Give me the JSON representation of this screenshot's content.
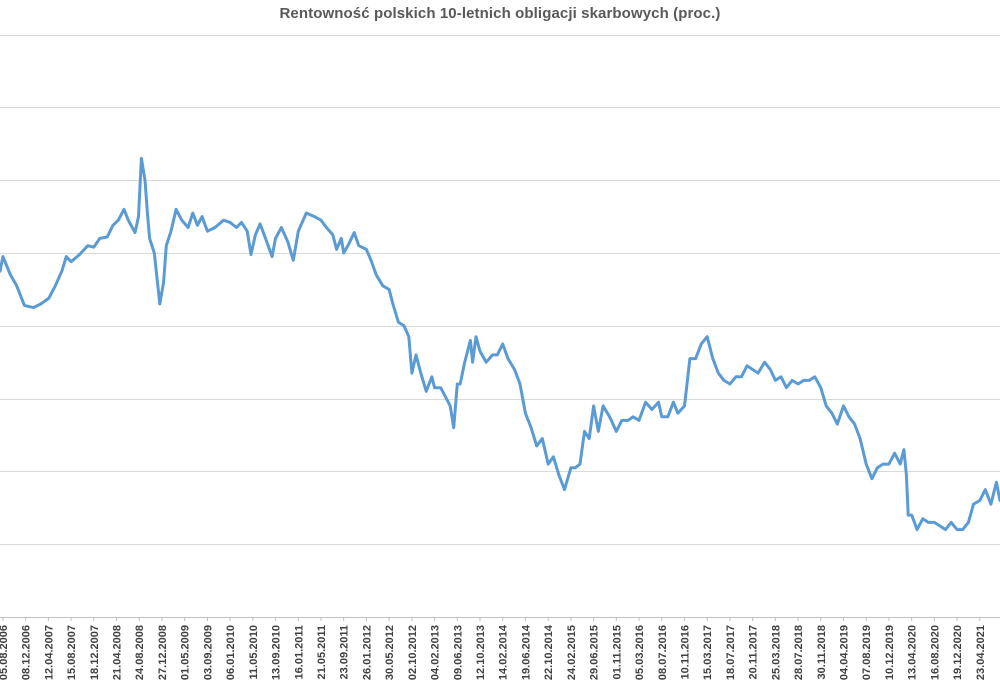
{
  "chart_data": {
    "type": "line",
    "title": "Rentowność polskich 10-letnich obligacji skarbowych (proc.)",
    "xlabel": "",
    "ylabel": "",
    "ylim": [
      0,
      8
    ],
    "y_ticks": [
      1,
      2,
      3,
      4,
      5,
      6,
      7,
      8
    ],
    "y_tick_labels_visible": false,
    "grid": "horizontal",
    "legend": "none",
    "line_color": "#5b9bd5",
    "x_range": [
      "2006-07-20",
      "2021-08-12"
    ],
    "x_tick_labels": [
      "05.08.2006",
      "08.12.2006",
      "12.04.2007",
      "15.08.2007",
      "18.12.2007",
      "21.04.2008",
      "24.08.2008",
      "27.12.2008",
      "01.05.2009",
      "03.09.2009",
      "06.01.2010",
      "11.05.2010",
      "13.09.2010",
      "16.01.2011",
      "21.05.2011",
      "23.09.2011",
      "26.01.2012",
      "30.05.2012",
      "02.10.2012",
      "04.02.2013",
      "09.06.2013",
      "12.10.2013",
      "14.02.2014",
      "19.06.2014",
      "22.10.2014",
      "24.02.2015",
      "29.06.2015",
      "01.11.2015",
      "05.03.2016",
      "08.07.2016",
      "10.11.2016",
      "15.03.2017",
      "18.07.2017",
      "20.11.2017",
      "25.03.2018",
      "28.07.2018",
      "30.11.2018",
      "04.04.2019",
      "07.08.2019",
      "10.12.2019",
      "13.04.2020",
      "16.08.2020",
      "19.12.2020",
      "23.04.2021"
    ],
    "series": [
      {
        "name": "",
        "x": [
          "2006-07-20",
          "2006-08-05",
          "2006-09-15",
          "2006-10-20",
          "2006-12-01",
          "2007-01-20",
          "2007-03-01",
          "2007-04-15",
          "2007-05-20",
          "2007-06-25",
          "2007-07-20",
          "2007-08-15",
          "2007-10-01",
          "2007-11-15",
          "2007-12-18",
          "2008-01-20",
          "2008-03-01",
          "2008-04-01",
          "2008-05-01",
          "2008-06-01",
          "2008-06-25",
          "2008-08-01",
          "2008-08-20",
          "2008-09-05",
          "2008-09-25",
          "2008-10-08",
          "2008-10-20",
          "2008-11-15",
          "2008-12-15",
          "2009-01-05",
          "2009-01-20",
          "2009-02-15",
          "2009-03-15",
          "2009-04-15",
          "2009-05-20",
          "2009-06-15",
          "2009-07-10",
          "2009-08-05",
          "2009-09-03",
          "2009-10-15",
          "2009-12-01",
          "2010-01-06",
          "2010-02-10",
          "2010-03-10",
          "2010-04-10",
          "2010-05-01",
          "2010-05-25",
          "2010-06-20",
          "2010-07-20",
          "2010-08-25",
          "2010-09-13",
          "2010-10-15",
          "2010-11-20",
          "2010-12-20",
          "2011-01-16",
          "2011-03-01",
          "2011-04-15",
          "2011-05-21",
          "2011-06-20",
          "2011-07-25",
          "2011-08-15",
          "2011-09-10",
          "2011-09-23",
          "2011-10-20",
          "2011-11-20",
          "2011-12-15",
          "2012-01-26",
          "2012-02-20",
          "2012-03-20",
          "2012-04-25",
          "2012-05-30",
          "2012-06-20",
          "2012-07-20",
          "2012-08-20",
          "2012-09-15",
          "2012-10-02",
          "2012-10-25",
          "2012-11-20",
          "2012-12-20",
          "2013-01-20",
          "2013-02-04",
          "2013-03-10",
          "2013-04-10",
          "2013-05-01",
          "2013-05-20",
          "2013-06-09",
          "2013-06-25",
          "2013-07-20",
          "2013-08-20",
          "2013-09-01",
          "2013-09-20",
          "2013-10-12",
          "2013-11-15",
          "2013-12-20",
          "2014-01-15",
          "2014-02-14",
          "2014-03-15",
          "2014-04-20",
          "2014-05-20",
          "2014-06-19",
          "2014-07-20",
          "2014-08-20",
          "2014-09-20",
          "2014-10-22",
          "2014-11-20",
          "2014-12-20",
          "2015-01-20",
          "2015-02-24",
          "2015-03-20",
          "2015-04-15",
          "2015-05-10",
          "2015-06-05",
          "2015-06-29",
          "2015-07-25",
          "2015-08-20",
          "2015-09-25",
          "2015-11-01",
          "2015-12-01",
          "2016-01-05",
          "2016-02-01",
          "2016-03-05",
          "2016-04-10",
          "2016-05-15",
          "2016-06-20",
          "2016-07-08",
          "2016-08-10",
          "2016-09-10",
          "2016-10-05",
          "2016-11-10",
          "2016-12-10",
          "2017-01-10",
          "2017-02-10",
          "2017-03-15",
          "2017-04-15",
          "2017-05-15",
          "2017-06-15",
          "2017-07-18",
          "2017-08-20",
          "2017-09-20",
          "2017-10-20",
          "2017-11-20",
          "2017-12-20",
          "2018-01-25",
          "2018-02-25",
          "2018-03-25",
          "2018-04-25",
          "2018-05-25",
          "2018-06-25",
          "2018-07-28",
          "2018-08-28",
          "2018-09-28",
          "2018-10-28",
          "2018-11-30",
          "2018-12-30",
          "2019-01-30",
          "2019-03-01",
          "2019-04-04",
          "2019-05-04",
          "2019-06-04",
          "2019-07-04",
          "2019-08-07",
          "2019-09-07",
          "2019-10-07",
          "2019-11-07",
          "2019-12-10",
          "2020-01-10",
          "2020-02-10",
          "2020-03-01",
          "2020-03-15",
          "2020-03-25",
          "2020-04-13",
          "2020-05-13",
          "2020-06-13",
          "2020-07-13",
          "2020-08-16",
          "2020-09-16",
          "2020-10-16",
          "2020-11-16",
          "2020-12-19",
          "2021-01-19",
          "2021-02-19",
          "2021-03-19",
          "2021-04-23",
          "2021-05-23",
          "2021-06-23",
          "2021-07-23",
          "2021-08-12"
        ],
        "values": [
          4.75,
          4.95,
          4.7,
          4.55,
          4.28,
          4.25,
          4.3,
          4.38,
          4.55,
          4.75,
          4.95,
          4.88,
          4.98,
          5.1,
          5.08,
          5.2,
          5.22,
          5.38,
          5.45,
          5.6,
          5.45,
          5.28,
          5.5,
          6.3,
          6.0,
          5.55,
          5.2,
          5.0,
          4.3,
          4.6,
          5.1,
          5.3,
          5.6,
          5.45,
          5.35,
          5.55,
          5.38,
          5.5,
          5.3,
          5.35,
          5.45,
          5.42,
          5.35,
          5.42,
          5.3,
          4.98,
          5.25,
          5.4,
          5.2,
          4.95,
          5.2,
          5.35,
          5.15,
          4.9,
          5.3,
          5.55,
          5.5,
          5.45,
          5.35,
          5.25,
          5.05,
          5.2,
          5.0,
          5.12,
          5.28,
          5.1,
          5.05,
          4.9,
          4.7,
          4.55,
          4.5,
          4.3,
          4.05,
          4.0,
          3.85,
          3.35,
          3.6,
          3.35,
          3.1,
          3.3,
          3.15,
          3.15,
          3.0,
          2.9,
          2.6,
          3.2,
          3.2,
          3.5,
          3.8,
          3.5,
          3.85,
          3.65,
          3.5,
          3.6,
          3.6,
          3.75,
          3.55,
          3.4,
          3.2,
          2.8,
          2.6,
          2.35,
          2.45,
          2.1,
          2.2,
          1.95,
          1.75,
          2.05,
          2.05,
          2.1,
          2.55,
          2.45,
          2.9,
          2.55,
          2.9,
          2.75,
          2.55,
          2.7,
          2.7,
          2.75,
          2.7,
          2.95,
          2.85,
          2.95,
          2.75,
          2.75,
          2.95,
          2.8,
          2.9,
          3.55,
          3.55,
          3.75,
          3.85,
          3.55,
          3.35,
          3.25,
          3.2,
          3.3,
          3.3,
          3.45,
          3.4,
          3.35,
          3.5,
          3.4,
          3.25,
          3.3,
          3.15,
          3.25,
          3.2,
          3.25,
          3.25,
          3.3,
          3.15,
          2.9,
          2.8,
          2.65,
          2.9,
          2.75,
          2.65,
          2.45,
          2.1,
          1.9,
          2.05,
          2.1,
          2.1,
          2.25,
          2.1,
          2.3,
          1.95,
          1.4,
          1.4,
          1.2,
          1.35,
          1.3,
          1.3,
          1.25,
          1.2,
          1.3,
          1.2,
          1.2,
          1.3,
          1.55,
          1.6,
          1.75,
          1.55,
          1.85,
          1.6
        ]
      }
    ]
  }
}
